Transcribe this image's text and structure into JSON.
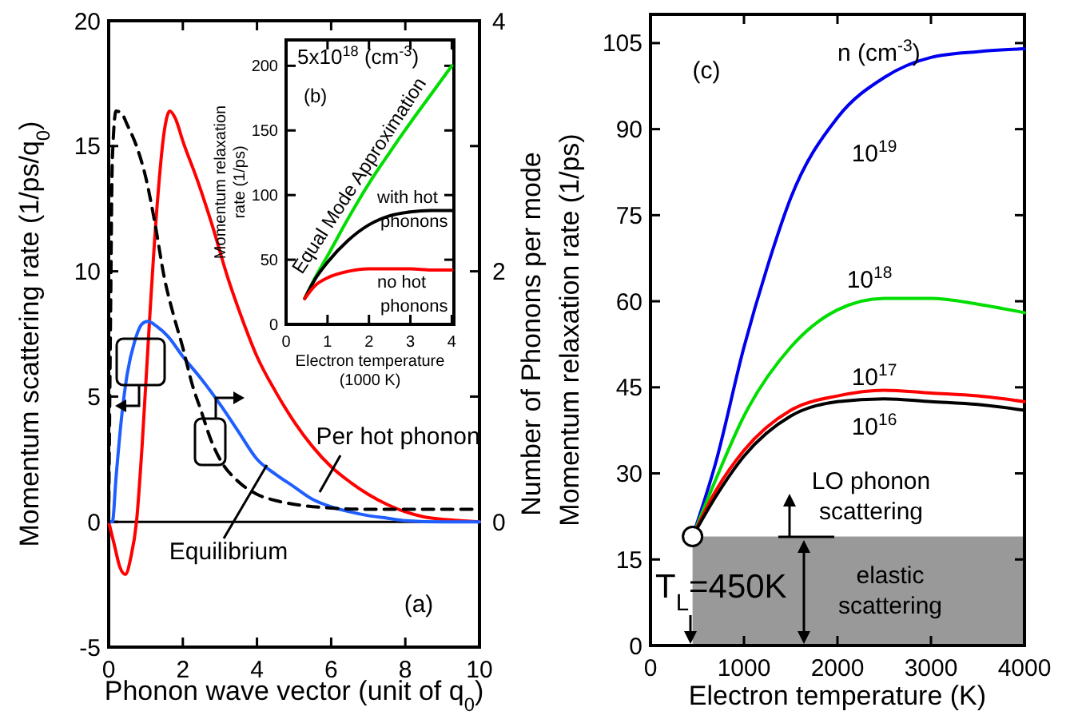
{
  "chart_data": [
    {
      "type": "line",
      "xlabel": "Phonon wave vector (unit of q$_{0}$)",
      "ylabel": "Momentum scattering rate (1/ps/q$_{0}$)",
      "y2label": "Number of Phonons per mode",
      "xlim": [
        0,
        10
      ],
      "ylim": [
        -5,
        20
      ],
      "y2lim": [
        -1,
        4
      ],
      "xticks": [
        0,
        2,
        4,
        6,
        8,
        10
      ],
      "yticks": [
        -5,
        0,
        5,
        10,
        15,
        20
      ],
      "y2ticks": [
        0,
        {
          "value": 1,
          "label": null
        },
        2,
        {
          "value": 3,
          "label": null
        },
        4
      ],
      "marker": "none",
      "line_style": "solid",
      "ref_lines": [
        {
          "axis": "y",
          "value": 0,
          "color": "#000000"
        }
      ],
      "annotations": [
        "(a)"
      ],
      "series": [
        {
          "name": "Per hot phonon",
          "color": "#ff0000",
          "x": [
            0,
            0.15,
            0.3,
            0.45,
            0.6,
            0.75,
            0.9,
            1.1,
            1.3,
            1.5,
            1.65,
            1.8,
            2,
            2.4,
            2.8,
            3.2,
            3.6,
            4,
            4.5,
            5,
            5.5,
            6,
            6.5,
            7,
            7.5,
            8,
            8.5,
            9,
            9.5,
            10
          ],
          "values": [
            0,
            -0.9,
            -1.8,
            -2.1,
            -1.4,
            0,
            3,
            8,
            12.5,
            15.6,
            16.4,
            16.1,
            15.2,
            13.6,
            11.8,
            9.8,
            8.1,
            6.6,
            5.2,
            4,
            3,
            2.2,
            1.6,
            1.1,
            0.7,
            0.4,
            0.2,
            0.1,
            0.05,
            0
          ]
        },
        {
          "name": "Equilibrium",
          "color": "#1f5fff",
          "x": [
            0,
            0.1,
            0.2,
            0.35,
            0.5,
            0.7,
            0.9,
            1.05,
            1.3,
            1.6,
            2,
            2.5,
            3,
            3.5,
            4,
            4.5,
            5,
            5.5,
            6,
            6.5,
            7,
            7.5,
            8,
            9,
            10
          ],
          "values": [
            0,
            0,
            1.8,
            4.2,
            5.9,
            7.2,
            7.9,
            8,
            7.8,
            7.4,
            6.6,
            5.7,
            4.7,
            3.6,
            2.5,
            1.9,
            1.4,
            0.9,
            0.6,
            0.4,
            0.25,
            0.15,
            0.05,
            0,
            0
          ]
        },
        {
          "color": "#000000",
          "axis": "y2",
          "line_style": "dashed",
          "x": [
            0,
            0.05,
            0.1,
            0.2,
            0.35,
            0.5,
            0.75,
            1,
            1.25,
            1.5,
            1.75,
            2,
            2.25,
            2.5,
            2.75,
            3,
            3.5,
            4,
            4.5,
            5,
            6,
            7,
            8,
            9,
            10
          ],
          "values": [
            0,
            1.6,
            2.9,
            3.28,
            3.26,
            3.17,
            3,
            2.75,
            2.38,
            1.95,
            1.65,
            1.39,
            1.1,
            0.88,
            0.66,
            0.5,
            0.32,
            0.22,
            0.17,
            0.14,
            0.11,
            0.1,
            0.1,
            0.1,
            0.1
          ]
        }
      ]
    },
    {
      "type": "line",
      "xlabel": "Electron temperature (1000 K)",
      "ylabel": "Momentum relaxation rate (1/ps)",
      "xlim": [
        0,
        4.05
      ],
      "ylim": [
        0,
        220
      ],
      "xticks": [
        0,
        1,
        2,
        3,
        4
      ],
      "yticks": [
        0,
        50,
        100,
        150,
        200
      ],
      "marker": "none",
      "line_style": "solid",
      "annotations": [
        "5x10$^{18}$ (cm$^{-3}$)",
        "(b)",
        "Equal Mode Approximation",
        "with hot phonons",
        "no hot phonons"
      ],
      "series": [
        {
          "color": "#00dd00",
          "x": [
            0.45,
            0.7,
            1,
            1.5,
            2,
            2.5,
            3,
            3.5,
            4
          ],
          "values": [
            20,
            36,
            53,
            82,
            109,
            133,
            156,
            178,
            200
          ]
        },
        {
          "color": "#000000",
          "x": [
            0.45,
            0.7,
            1,
            1.5,
            2,
            2.5,
            3,
            3.5,
            4
          ],
          "values": [
            20,
            35,
            48,
            65,
            77,
            84,
            87,
            88,
            88
          ]
        },
        {
          "color": "#ff0000",
          "x": [
            0.45,
            0.7,
            1,
            1.5,
            2,
            2.5,
            3,
            3.5,
            4
          ],
          "values": [
            20,
            30,
            36,
            41,
            43,
            43,
            43,
            42,
            42
          ]
        }
      ]
    },
    {
      "type": "line",
      "xlabel": "Electron temperature (K)",
      "ylabel": "Momentum relaxation rate (1/ps)",
      "xlim": [
        0,
        4000
      ],
      "ylim": [
        0,
        110
      ],
      "xticks": [
        0,
        1000,
        2000,
        3000,
        4000
      ],
      "yticks": [
        0,
        15,
        30,
        45,
        60,
        75,
        90,
        105
      ],
      "marker": "none",
      "line_style": "solid",
      "bands": [
        {
          "axis": "y",
          "from": 0,
          "to": 19,
          "label": "elastic scattering",
          "color": "#999999"
        }
      ],
      "annotations": [
        "(c)",
        "n (cm$^{-3}$)",
        "LO phonon scattering",
        "T$_{L}$=450K"
      ],
      "series": [
        {
          "name": "10$^{19}$",
          "color": "#0000ee",
          "x": [
            450,
            700,
            1000,
            1250,
            1500,
            2000,
            2500,
            3000,
            3500,
            4000
          ],
          "values": [
            19,
            32,
            52,
            66,
            78,
            92,
            99,
            102.5,
            103.5,
            104
          ]
        },
        {
          "name": "10$^{18}$",
          "color": "#00dd00",
          "x": [
            450,
            700,
            1000,
            1500,
            2000,
            2500,
            3000,
            3500,
            4000
          ],
          "values": [
            19,
            29,
            40,
            52,
            58.5,
            60.5,
            60.5,
            59.5,
            58
          ]
        },
        {
          "name": "10$^{17}$",
          "color": "#ff0000",
          "x": [
            450,
            700,
            1000,
            1500,
            2000,
            2500,
            3000,
            3500,
            4000
          ],
          "values": [
            19,
            27,
            34,
            41,
            43.5,
            44.5,
            44,
            43.5,
            42.5
          ]
        },
        {
          "name": "10$^{16}$",
          "color": "#000000",
          "x": [
            450,
            700,
            1000,
            1500,
            2000,
            2500,
            3000,
            3500,
            4000
          ],
          "values": [
            19,
            26,
            33,
            40,
            42.5,
            43,
            42.5,
            42,
            41
          ]
        },
        {
          "type": "scatter",
          "color": "#ffffff",
          "marker": "circle",
          "x": [
            450
          ],
          "values": [
            19
          ]
        }
      ]
    }
  ]
}
